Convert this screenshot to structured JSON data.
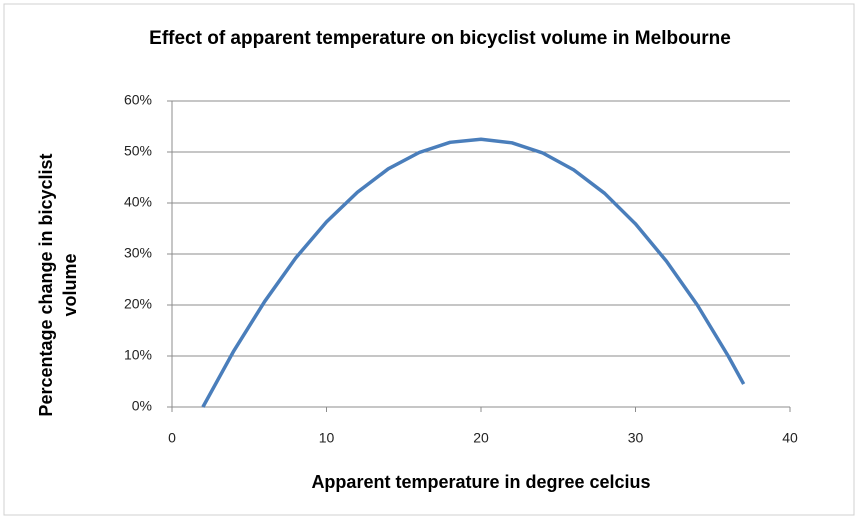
{
  "chart_data": {
    "type": "line",
    "title": "Effect of apparent temperature on bicyclist volume in Melbourne",
    "xlabel": "Apparent temperature in degree celcius",
    "ylabel": "Percentage change in bicyclist volume",
    "x": [
      2,
      4,
      6,
      8,
      10,
      12,
      14,
      16,
      18,
      20,
      22,
      24,
      26,
      28,
      30,
      32,
      34,
      36,
      37
    ],
    "values": [
      0,
      11.0,
      20.7,
      29.2,
      36.3,
      42.1,
      46.7,
      49.9,
      51.9,
      52.5,
      51.8,
      49.8,
      46.5,
      41.9,
      35.9,
      28.6,
      20.0,
      10.0,
      4.5
    ],
    "color": "#4a7ebb",
    "xlim": [
      0,
      40
    ],
    "xticks": [
      0,
      10,
      20,
      30,
      40
    ],
    "ylim": [
      0,
      60
    ],
    "yticks": [
      {
        "value": 0,
        "label": "0%"
      },
      {
        "value": 10,
        "label": "10%"
      },
      {
        "value": 20,
        "label": "20%"
      },
      {
        "value": 30,
        "label": "30%"
      },
      {
        "value": 40,
        "label": "40%"
      },
      {
        "value": 50,
        "label": "50%"
      },
      {
        "value": 60,
        "label": "60%"
      }
    ],
    "grid": true
  }
}
